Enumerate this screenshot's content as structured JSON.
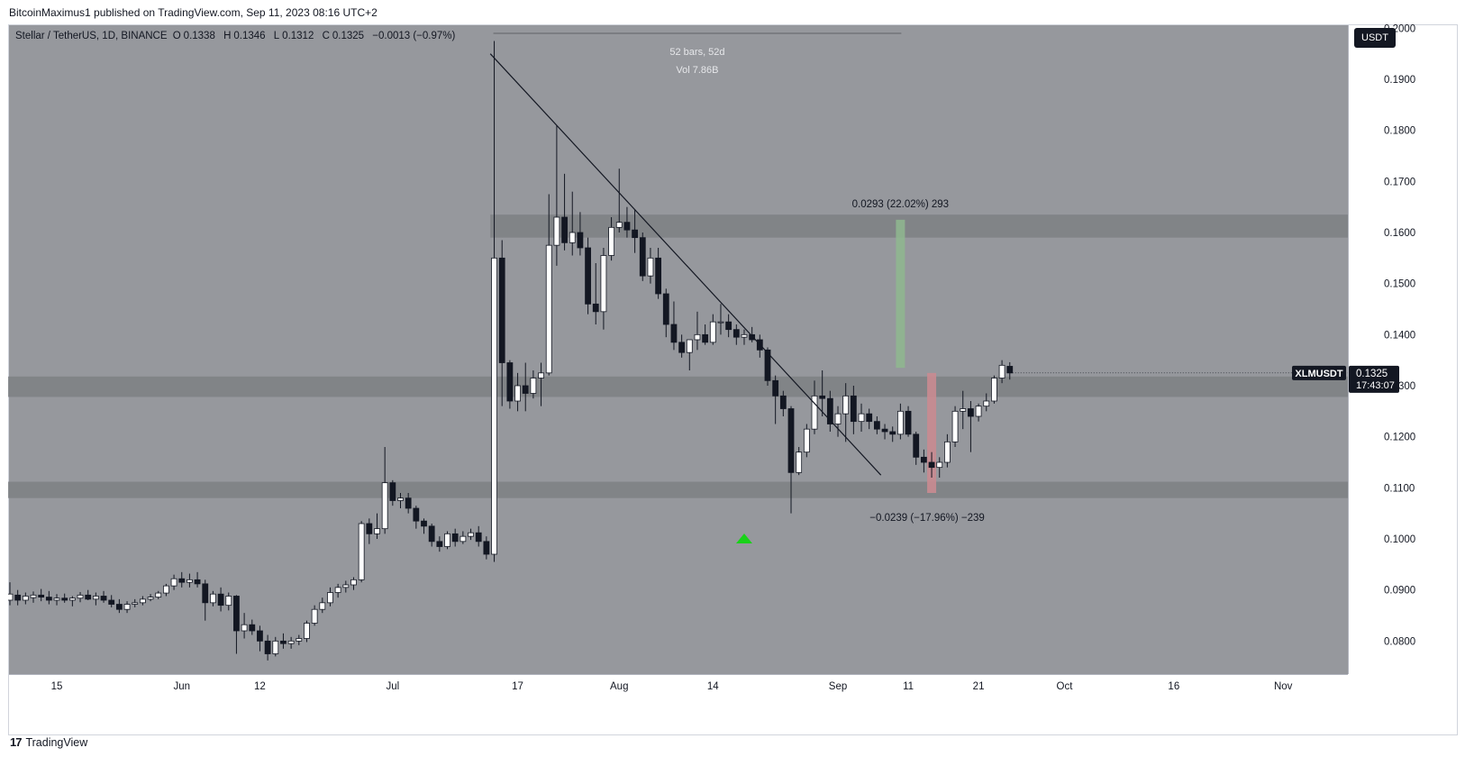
{
  "publisher_line": "BitcoinMaximus1 published on TradingView.com, Sep 11, 2023 08:16 UTC+2",
  "footer_brand": "TradingView",
  "footer_logo_glyph": "17",
  "legend": {
    "symbol": "Stellar / TetherUS, 1D, BINANCE",
    "o_label": "O",
    "o_value": "0.1338",
    "h_label": "H",
    "h_value": "0.1346",
    "l_label": "L",
    "l_value": "0.1312",
    "c_label": "C",
    "c_value": "0.1325",
    "change": "−0.0013 (−0.97%)"
  },
  "currency_badge": "USDT",
  "price_tag": {
    "symbol": "XLMUSDT",
    "price": "0.1325",
    "countdown": "17:43:07"
  },
  "colors": {
    "plot_bg": "#96989d",
    "zone": "#7e8084",
    "candle_up": "#ffffff",
    "candle_down": "#131722",
    "target_up": "#8fb78f",
    "target_down": "#c98b91",
    "marker": "#19d219"
  },
  "chart_data": {
    "type": "candlestick",
    "title": "",
    "x_tick_labels": [
      "15",
      "Jun",
      "12",
      "Jul",
      "17",
      "Aug",
      "14",
      "Sep",
      "11",
      "21",
      "Oct",
      "16",
      "Nov"
    ],
    "y_tick_labels": [
      "0.2000",
      "0.1900",
      "0.1800",
      "0.1700",
      "0.1600",
      "0.1500",
      "0.1400",
      "0.1300",
      "0.1200",
      "0.1100",
      "0.1000",
      "0.0900",
      "0.0800"
    ],
    "ylim": [
      0.0725,
      0.2005
    ],
    "price_scale": "linear",
    "grid": false,
    "candles": [
      {
        "o": 0.088,
        "h": 0.0915,
        "l": 0.087,
        "c": 0.0892
      },
      {
        "o": 0.089,
        "h": 0.09,
        "l": 0.087,
        "c": 0.088
      },
      {
        "o": 0.088,
        "h": 0.0895,
        "l": 0.0872,
        "c": 0.0888
      },
      {
        "o": 0.0885,
        "h": 0.0897,
        "l": 0.0875,
        "c": 0.089
      },
      {
        "o": 0.089,
        "h": 0.0902,
        "l": 0.0878,
        "c": 0.0886
      },
      {
        "o": 0.0886,
        "h": 0.0898,
        "l": 0.0872,
        "c": 0.088
      },
      {
        "o": 0.088,
        "h": 0.0892,
        "l": 0.087,
        "c": 0.0884
      },
      {
        "o": 0.0884,
        "h": 0.0893,
        "l": 0.0875,
        "c": 0.088
      },
      {
        "o": 0.088,
        "h": 0.0888,
        "l": 0.0868,
        "c": 0.0884
      },
      {
        "o": 0.0884,
        "h": 0.0896,
        "l": 0.0876,
        "c": 0.089
      },
      {
        "o": 0.089,
        "h": 0.09,
        "l": 0.088,
        "c": 0.0882
      },
      {
        "o": 0.0882,
        "h": 0.0895,
        "l": 0.087,
        "c": 0.0888
      },
      {
        "o": 0.0888,
        "h": 0.0898,
        "l": 0.0875,
        "c": 0.088
      },
      {
        "o": 0.088,
        "h": 0.089,
        "l": 0.0866,
        "c": 0.0872
      },
      {
        "o": 0.0872,
        "h": 0.0882,
        "l": 0.0855,
        "c": 0.0862
      },
      {
        "o": 0.0862,
        "h": 0.0878,
        "l": 0.0855,
        "c": 0.0872
      },
      {
        "o": 0.0872,
        "h": 0.0882,
        "l": 0.0866,
        "c": 0.0875
      },
      {
        "o": 0.0875,
        "h": 0.0888,
        "l": 0.087,
        "c": 0.0882
      },
      {
        "o": 0.0882,
        "h": 0.0892,
        "l": 0.0878,
        "c": 0.0886
      },
      {
        "o": 0.0886,
        "h": 0.0898,
        "l": 0.0882,
        "c": 0.0894
      },
      {
        "o": 0.0894,
        "h": 0.0912,
        "l": 0.0888,
        "c": 0.0908
      },
      {
        "o": 0.0908,
        "h": 0.093,
        "l": 0.09,
        "c": 0.0922
      },
      {
        "o": 0.0922,
        "h": 0.0935,
        "l": 0.0905,
        "c": 0.0915
      },
      {
        "o": 0.0915,
        "h": 0.0932,
        "l": 0.0905,
        "c": 0.092
      },
      {
        "o": 0.092,
        "h": 0.0935,
        "l": 0.0905,
        "c": 0.0912
      },
      {
        "o": 0.0912,
        "h": 0.092,
        "l": 0.084,
        "c": 0.0875
      },
      {
        "o": 0.0875,
        "h": 0.0898,
        "l": 0.0868,
        "c": 0.0892
      },
      {
        "o": 0.0892,
        "h": 0.0905,
        "l": 0.0858,
        "c": 0.087
      },
      {
        "o": 0.087,
        "h": 0.0895,
        "l": 0.086,
        "c": 0.0888
      },
      {
        "o": 0.0888,
        "h": 0.089,
        "l": 0.0775,
        "c": 0.082
      },
      {
        "o": 0.082,
        "h": 0.0855,
        "l": 0.0805,
        "c": 0.0832
      },
      {
        "o": 0.0832,
        "h": 0.0842,
        "l": 0.0812,
        "c": 0.082
      },
      {
        "o": 0.082,
        "h": 0.083,
        "l": 0.078,
        "c": 0.08
      },
      {
        "o": 0.08,
        "h": 0.0812,
        "l": 0.0762,
        "c": 0.0775
      },
      {
        "o": 0.0775,
        "h": 0.0808,
        "l": 0.077,
        "c": 0.08
      },
      {
        "o": 0.08,
        "h": 0.0815,
        "l": 0.0785,
        "c": 0.0795
      },
      {
        "o": 0.0795,
        "h": 0.0808,
        "l": 0.0785,
        "c": 0.08
      },
      {
        "o": 0.08,
        "h": 0.0812,
        "l": 0.0792,
        "c": 0.0805
      },
      {
        "o": 0.0805,
        "h": 0.084,
        "l": 0.0798,
        "c": 0.0835
      },
      {
        "o": 0.0835,
        "h": 0.087,
        "l": 0.083,
        "c": 0.0862
      },
      {
        "o": 0.0862,
        "h": 0.0885,
        "l": 0.0855,
        "c": 0.0875
      },
      {
        "o": 0.0875,
        "h": 0.0905,
        "l": 0.0868,
        "c": 0.0895
      },
      {
        "o": 0.0895,
        "h": 0.0912,
        "l": 0.0885,
        "c": 0.0905
      },
      {
        "o": 0.0905,
        "h": 0.0918,
        "l": 0.0895,
        "c": 0.091
      },
      {
        "o": 0.091,
        "h": 0.0925,
        "l": 0.09,
        "c": 0.092
      },
      {
        "o": 0.092,
        "h": 0.1035,
        "l": 0.0915,
        "c": 0.103
      },
      {
        "o": 0.103,
        "h": 0.104,
        "l": 0.099,
        "c": 0.101
      },
      {
        "o": 0.101,
        "h": 0.105,
        "l": 0.1,
        "c": 0.102
      },
      {
        "o": 0.102,
        "h": 0.118,
        "l": 0.101,
        "c": 0.111
      },
      {
        "o": 0.111,
        "h": 0.1115,
        "l": 0.1065,
        "c": 0.1075
      },
      {
        "o": 0.1075,
        "h": 0.109,
        "l": 0.106,
        "c": 0.108
      },
      {
        "o": 0.108,
        "h": 0.109,
        "l": 0.105,
        "c": 0.106
      },
      {
        "o": 0.106,
        "h": 0.1065,
        "l": 0.102,
        "c": 0.1035
      },
      {
        "o": 0.1035,
        "h": 0.104,
        "l": 0.101,
        "c": 0.1025
      },
      {
        "o": 0.1025,
        "h": 0.103,
        "l": 0.0985,
        "c": 0.0995
      },
      {
        "o": 0.0995,
        "h": 0.1005,
        "l": 0.0975,
        "c": 0.0985
      },
      {
        "o": 0.0985,
        "h": 0.1015,
        "l": 0.098,
        "c": 0.101
      },
      {
        "o": 0.101,
        "h": 0.102,
        "l": 0.0985,
        "c": 0.0995
      },
      {
        "o": 0.0995,
        "h": 0.1015,
        "l": 0.099,
        "c": 0.1005
      },
      {
        "o": 0.1005,
        "h": 0.102,
        "l": 0.0998,
        "c": 0.1012
      },
      {
        "o": 0.1012,
        "h": 0.1025,
        "l": 0.0985,
        "c": 0.0995
      },
      {
        "o": 0.0995,
        "h": 0.1005,
        "l": 0.096,
        "c": 0.097
      },
      {
        "o": 0.097,
        "h": 0.1975,
        "l": 0.0955,
        "c": 0.155
      },
      {
        "o": 0.155,
        "h": 0.1585,
        "l": 0.126,
        "c": 0.1345
      },
      {
        "o": 0.1345,
        "h": 0.135,
        "l": 0.1255,
        "c": 0.127
      },
      {
        "o": 0.127,
        "h": 0.1325,
        "l": 0.125,
        "c": 0.13
      },
      {
        "o": 0.13,
        "h": 0.1345,
        "l": 0.125,
        "c": 0.1285
      },
      {
        "o": 0.1285,
        "h": 0.133,
        "l": 0.1275,
        "c": 0.1315
      },
      {
        "o": 0.1315,
        "h": 0.1345,
        "l": 0.126,
        "c": 0.1325
      },
      {
        "o": 0.1325,
        "h": 0.1675,
        "l": 0.132,
        "c": 0.1575
      },
      {
        "o": 0.1575,
        "h": 0.181,
        "l": 0.1535,
        "c": 0.163
      },
      {
        "o": 0.163,
        "h": 0.1715,
        "l": 0.1565,
        "c": 0.158
      },
      {
        "o": 0.158,
        "h": 0.168,
        "l": 0.1555,
        "c": 0.16
      },
      {
        "o": 0.16,
        "h": 0.164,
        "l": 0.1555,
        "c": 0.157
      },
      {
        "o": 0.157,
        "h": 0.159,
        "l": 0.144,
        "c": 0.146
      },
      {
        "o": 0.146,
        "h": 0.154,
        "l": 0.142,
        "c": 0.1445
      },
      {
        "o": 0.1445,
        "h": 0.157,
        "l": 0.141,
        "c": 0.1555
      },
      {
        "o": 0.1555,
        "h": 0.163,
        "l": 0.1545,
        "c": 0.161
      },
      {
        "o": 0.161,
        "h": 0.1725,
        "l": 0.16,
        "c": 0.162
      },
      {
        "o": 0.162,
        "h": 0.165,
        "l": 0.159,
        "c": 0.1605
      },
      {
        "o": 0.1605,
        "h": 0.1645,
        "l": 0.156,
        "c": 0.159
      },
      {
        "o": 0.159,
        "h": 0.16,
        "l": 0.1505,
        "c": 0.1515
      },
      {
        "o": 0.1515,
        "h": 0.157,
        "l": 0.15,
        "c": 0.155
      },
      {
        "o": 0.155,
        "h": 0.157,
        "l": 0.147,
        "c": 0.148
      },
      {
        "o": 0.148,
        "h": 0.149,
        "l": 0.1395,
        "c": 0.142
      },
      {
        "o": 0.142,
        "h": 0.1465,
        "l": 0.137,
        "c": 0.1385
      },
      {
        "o": 0.1385,
        "h": 0.14,
        "l": 0.1355,
        "c": 0.1365
      },
      {
        "o": 0.1365,
        "h": 0.139,
        "l": 0.133,
        "c": 0.139
      },
      {
        "o": 0.139,
        "h": 0.1445,
        "l": 0.137,
        "c": 0.14
      },
      {
        "o": 0.14,
        "h": 0.142,
        "l": 0.138,
        "c": 0.1385
      },
      {
        "o": 0.1385,
        "h": 0.144,
        "l": 0.138,
        "c": 0.1425
      },
      {
        "o": 0.1425,
        "h": 0.146,
        "l": 0.14,
        "c": 0.1425
      },
      {
        "o": 0.1425,
        "h": 0.144,
        "l": 0.1395,
        "c": 0.141
      },
      {
        "o": 0.141,
        "h": 0.142,
        "l": 0.138,
        "c": 0.1395
      },
      {
        "o": 0.1395,
        "h": 0.141,
        "l": 0.138,
        "c": 0.14
      },
      {
        "o": 0.14,
        "h": 0.1415,
        "l": 0.1385,
        "c": 0.139
      },
      {
        "o": 0.139,
        "h": 0.14,
        "l": 0.1355,
        "c": 0.137
      },
      {
        "o": 0.137,
        "h": 0.1375,
        "l": 0.13,
        "c": 0.131
      },
      {
        "o": 0.131,
        "h": 0.132,
        "l": 0.1225,
        "c": 0.128
      },
      {
        "o": 0.128,
        "h": 0.129,
        "l": 0.124,
        "c": 0.1255
      },
      {
        "o": 0.1255,
        "h": 0.126,
        "l": 0.105,
        "c": 0.113
      },
      {
        "o": 0.113,
        "h": 0.118,
        "l": 0.1125,
        "c": 0.117
      },
      {
        "o": 0.117,
        "h": 0.1225,
        "l": 0.116,
        "c": 0.1215
      },
      {
        "o": 0.1215,
        "h": 0.131,
        "l": 0.1205,
        "c": 0.128
      },
      {
        "o": 0.128,
        "h": 0.133,
        "l": 0.124,
        "c": 0.1275
      },
      {
        "o": 0.1275,
        "h": 0.129,
        "l": 0.121,
        "c": 0.1225
      },
      {
        "o": 0.1225,
        "h": 0.126,
        "l": 0.12,
        "c": 0.1245
      },
      {
        "o": 0.1245,
        "h": 0.1305,
        "l": 0.119,
        "c": 0.128
      },
      {
        "o": 0.128,
        "h": 0.13,
        "l": 0.1205,
        "c": 0.123
      },
      {
        "o": 0.123,
        "h": 0.1265,
        "l": 0.121,
        "c": 0.1245
      },
      {
        "o": 0.1245,
        "h": 0.1255,
        "l": 0.1215,
        "c": 0.123
      },
      {
        "o": 0.123,
        "h": 0.124,
        "l": 0.1205,
        "c": 0.1215
      },
      {
        "o": 0.1215,
        "h": 0.1225,
        "l": 0.1195,
        "c": 0.121
      },
      {
        "o": 0.121,
        "h": 0.122,
        "l": 0.119,
        "c": 0.1205
      },
      {
        "o": 0.1205,
        "h": 0.1265,
        "l": 0.1195,
        "c": 0.125
      },
      {
        "o": 0.125,
        "h": 0.126,
        "l": 0.12,
        "c": 0.1205
      },
      {
        "o": 0.1205,
        "h": 0.121,
        "l": 0.1145,
        "c": 0.116
      },
      {
        "o": 0.116,
        "h": 0.1175,
        "l": 0.113,
        "c": 0.115
      },
      {
        "o": 0.115,
        "h": 0.117,
        "l": 0.112,
        "c": 0.114
      },
      {
        "o": 0.114,
        "h": 0.116,
        "l": 0.112,
        "c": 0.115
      },
      {
        "o": 0.115,
        "h": 0.1205,
        "l": 0.114,
        "c": 0.119
      },
      {
        "o": 0.119,
        "h": 0.126,
        "l": 0.118,
        "c": 0.125
      },
      {
        "o": 0.125,
        "h": 0.129,
        "l": 0.1215,
        "c": 0.1255
      },
      {
        "o": 0.1255,
        "h": 0.127,
        "l": 0.117,
        "c": 0.124
      },
      {
        "o": 0.124,
        "h": 0.1265,
        "l": 0.123,
        "c": 0.126
      },
      {
        "o": 0.126,
        "h": 0.1285,
        "l": 0.125,
        "c": 0.127
      },
      {
        "o": 0.127,
        "h": 0.132,
        "l": 0.1265,
        "c": 0.1315
      },
      {
        "o": 0.1315,
        "h": 0.135,
        "l": 0.1305,
        "c": 0.134
      },
      {
        "o": 0.1338,
        "h": 0.1346,
        "l": 0.1312,
        "c": 0.1325
      }
    ],
    "horizontal_zones": [
      {
        "from": 0.159,
        "to": 0.1635
      },
      {
        "from": 0.1278,
        "to": 0.1318
      },
      {
        "from": 0.108,
        "to": 0.1112
      }
    ],
    "descending_trendline": {
      "from": {
        "bar": 61.5,
        "price": 0.195
      },
      "to": {
        "bar": 111.5,
        "price": 0.1125
      }
    },
    "date_range_measure": {
      "from_bar": 62,
      "to_bar": 114,
      "price": 0.199,
      "bars_label": "52 bars, 52d",
      "volume_label": "Vol 7.86B"
    },
    "up_target": {
      "bar": 114,
      "from": 0.1335,
      "to": 0.1625,
      "label": "0.0293 (22.02%) 293"
    },
    "down_target": {
      "bar": 118,
      "from": 0.1325,
      "to": 0.109,
      "label": "−0.0239 (−17.96%) −239"
    },
    "marker": {
      "type": "triangle-up",
      "bar": 94,
      "price": 0.1
    },
    "last_price": 0.1325
  }
}
